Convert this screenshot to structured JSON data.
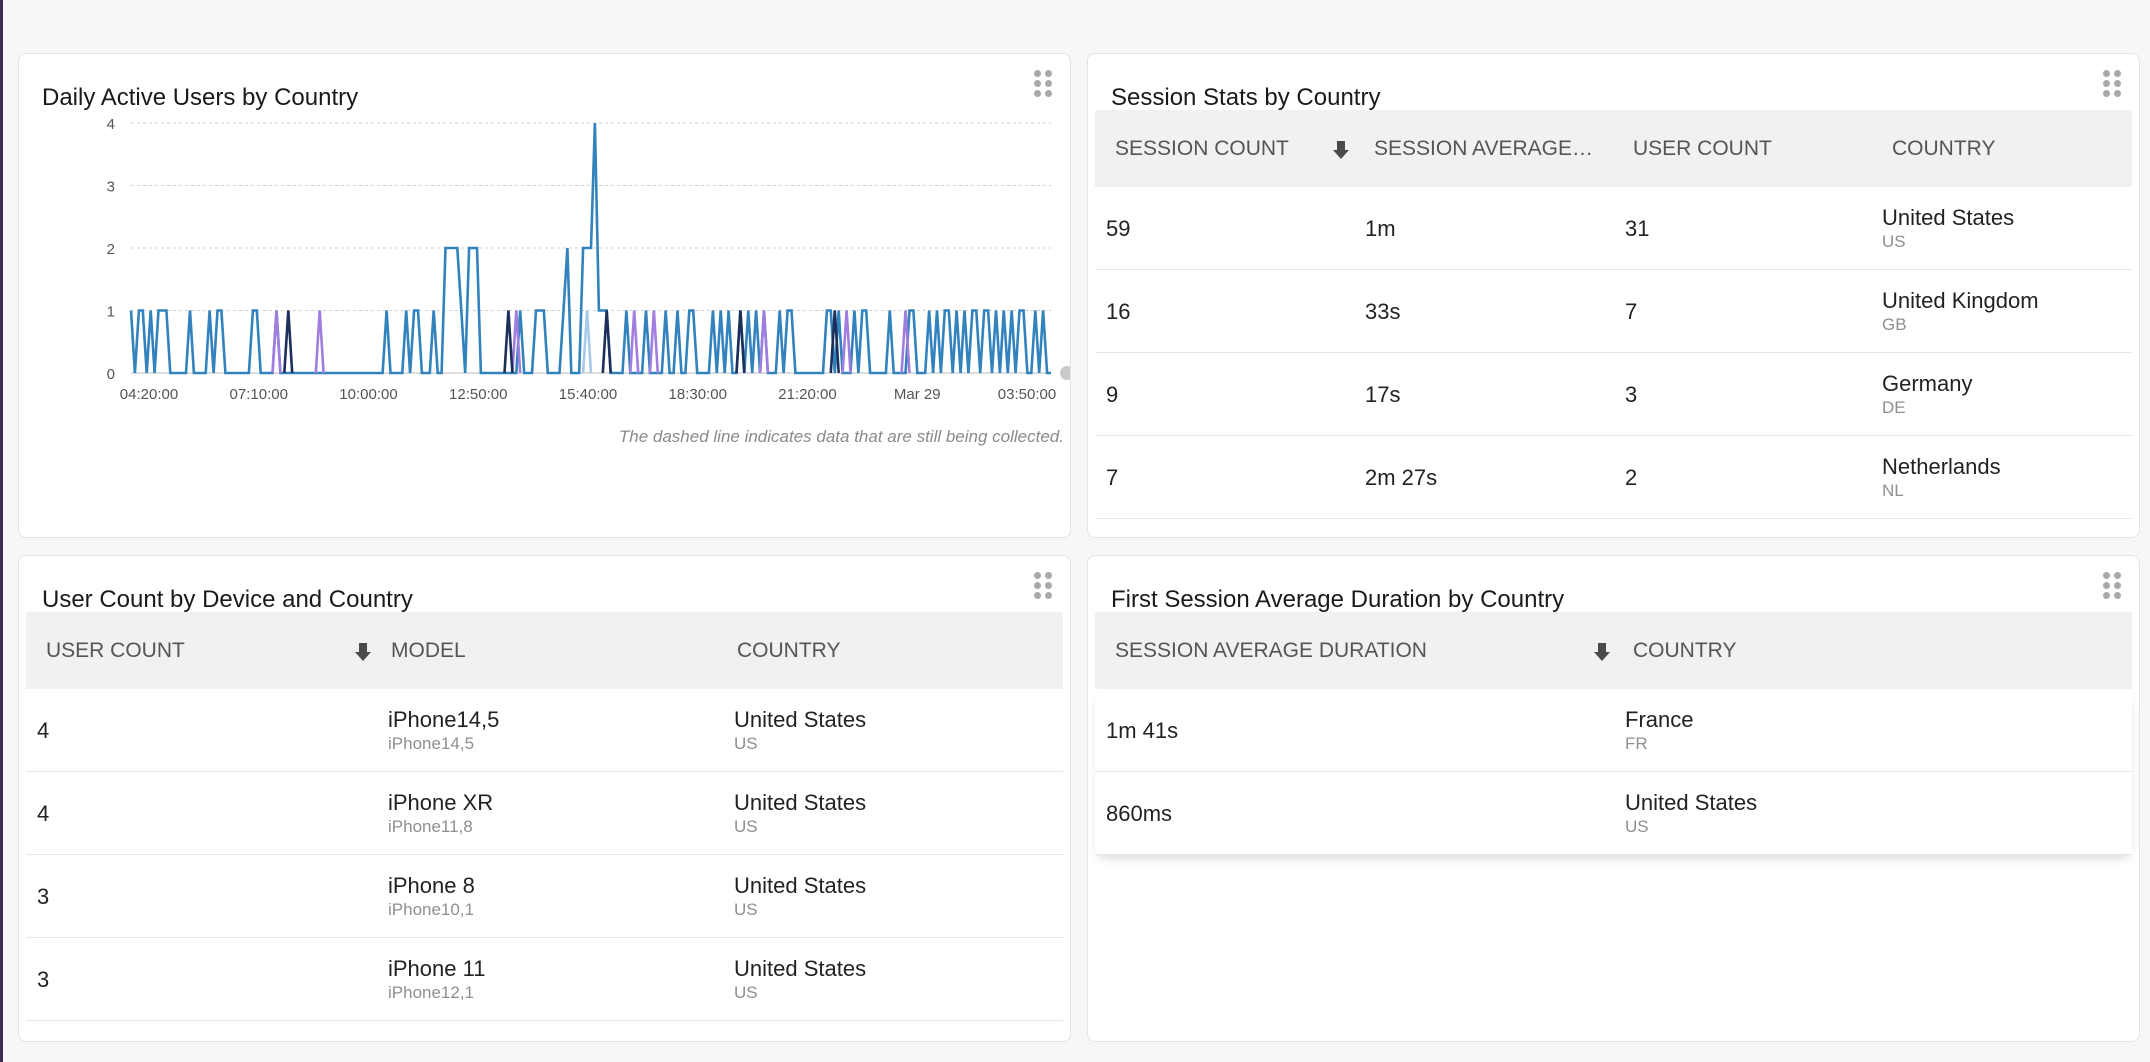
{
  "colors": {
    "series_main": "#3282bd",
    "series_purple": "#a27de0",
    "series_navy": "#1c2f5a",
    "series_light": "#a6cbe8",
    "grid": "#cfcfcf"
  },
  "cards": {
    "dau": {
      "title": "Daily Active Users by Country",
      "note": "The dashed line indicates data that are still being collected."
    },
    "session_stats": {
      "title": "Session Stats by Country",
      "columns": [
        "SESSION COUNT",
        "SESSION AVERAGE ...",
        "USER COUNT",
        "COUNTRY"
      ],
      "sort_icon": "arrow-down-icon",
      "rows": [
        {
          "session_count": "59",
          "avg": "1m",
          "user_count": "31",
          "country": "United States",
          "code": "US"
        },
        {
          "session_count": "16",
          "avg": "33s",
          "user_count": "7",
          "country": "United Kingdom",
          "code": "GB"
        },
        {
          "session_count": "9",
          "avg": "17s",
          "user_count": "3",
          "country": "Germany",
          "code": "DE"
        },
        {
          "session_count": "7",
          "avg": "2m 27s",
          "user_count": "2",
          "country": "Netherlands",
          "code": "NL"
        }
      ]
    },
    "device": {
      "title": "User Count by Device and Country",
      "columns": [
        "USER COUNT",
        "MODEL",
        "COUNTRY"
      ],
      "sort_icon": "arrow-down-icon",
      "rows": [
        {
          "user_count": "4",
          "model": "iPhone14,5",
          "model_id": "iPhone14,5",
          "country": "United States",
          "code": "US"
        },
        {
          "user_count": "4",
          "model": "iPhone XR",
          "model_id": "iPhone11,8",
          "country": "United States",
          "code": "US"
        },
        {
          "user_count": "3",
          "model": "iPhone 8",
          "model_id": "iPhone10,1",
          "country": "United States",
          "code": "US"
        },
        {
          "user_count": "3",
          "model": "iPhone 11",
          "model_id": "iPhone12,1",
          "country": "United States",
          "code": "US"
        }
      ]
    },
    "first_session": {
      "title": "First Session Average Duration by Country",
      "columns": [
        "SESSION AVERAGE DURATION",
        "COUNTRY"
      ],
      "sort_icon": "arrow-down-icon",
      "rows": [
        {
          "avg": "1m 41s",
          "country": "France",
          "code": "FR"
        },
        {
          "avg": "860ms",
          "country": "United States",
          "code": "US"
        }
      ]
    }
  },
  "chart_data": {
    "type": "line",
    "title": "Daily Active Users by Country",
    "ylim": [
      0,
      4
    ],
    "yticks": [
      "0",
      "1",
      "2",
      "3",
      "4"
    ],
    "xticks": [
      "04:20:00",
      "07:10:00",
      "10:00:00",
      "12:50:00",
      "15:40:00",
      "18:30:00",
      "21:20:00",
      "Mar 29",
      "03:50:00"
    ],
    "grid": true,
    "series": [
      {
        "color_key": "series_main",
        "values": [
          1,
          0,
          1,
          1,
          0,
          1,
          0,
          1,
          1,
          1,
          0,
          0,
          0,
          0,
          0,
          1,
          0,
          0,
          0,
          0,
          1,
          0,
          1,
          1,
          0,
          0,
          0,
          0,
          0,
          0,
          0,
          1,
          1,
          0,
          0,
          0,
          0,
          1,
          0,
          0,
          0,
          0,
          0,
          0,
          0,
          0,
          0,
          0,
          0,
          0,
          0,
          0,
          0,
          0,
          0,
          0,
          0,
          0,
          0,
          0,
          0,
          0,
          0,
          0,
          0,
          1,
          0,
          0,
          0,
          0,
          1,
          0,
          1,
          1,
          0,
          0,
          0,
          1,
          0,
          0,
          2,
          2,
          2,
          2,
          1,
          0,
          2,
          2,
          2,
          0,
          0,
          0,
          0,
          0,
          0,
          0,
          0,
          0,
          0,
          1,
          0,
          0,
          0,
          1,
          1,
          1,
          0,
          0,
          0,
          0,
          1,
          2,
          0,
          0,
          0,
          2,
          2,
          2,
          4,
          1,
          1,
          1,
          0,
          0,
          0,
          0,
          1,
          0,
          0,
          0,
          0,
          1,
          0,
          0,
          0,
          0,
          1,
          0,
          0,
          1,
          0,
          0,
          1,
          1,
          0,
          0,
          0,
          0,
          1,
          0,
          1,
          0,
          1,
          0,
          0,
          1,
          0,
          1,
          0,
          1,
          0,
          1,
          0,
          0,
          0,
          1,
          0,
          1,
          1,
          0,
          0,
          0,
          0,
          0,
          0,
          0,
          0,
          1,
          1,
          0,
          1,
          0,
          0,
          0,
          1,
          0,
          1,
          1,
          0,
          0,
          0,
          0,
          0,
          1,
          0,
          0,
          0,
          0,
          1,
          1,
          0,
          0,
          0,
          1,
          0,
          1,
          0,
          1,
          1,
          0,
          1,
          0,
          1,
          0,
          1,
          1,
          0,
          1,
          1,
          0,
          1,
          0,
          1,
          0,
          1,
          0,
          1,
          1,
          0,
          0,
          1,
          0,
          1,
          0,
          0
        ]
      },
      {
        "color_key": "series_purple",
        "marks": [
          [
            37,
            1
          ],
          [
            48,
            1
          ],
          [
            98,
            1
          ],
          [
            128,
            1
          ],
          [
            133,
            1
          ],
          [
            161,
            1
          ],
          [
            182,
            1
          ],
          [
            197,
            1
          ]
        ]
      },
      {
        "color_key": "series_navy",
        "marks": [
          [
            40,
            1
          ],
          [
            96,
            1
          ],
          [
            121,
            1
          ],
          [
            155,
            1
          ],
          [
            179,
            1
          ]
        ]
      },
      {
        "color_key": "series_light",
        "marks": [
          [
            116,
            1
          ]
        ]
      }
    ]
  }
}
